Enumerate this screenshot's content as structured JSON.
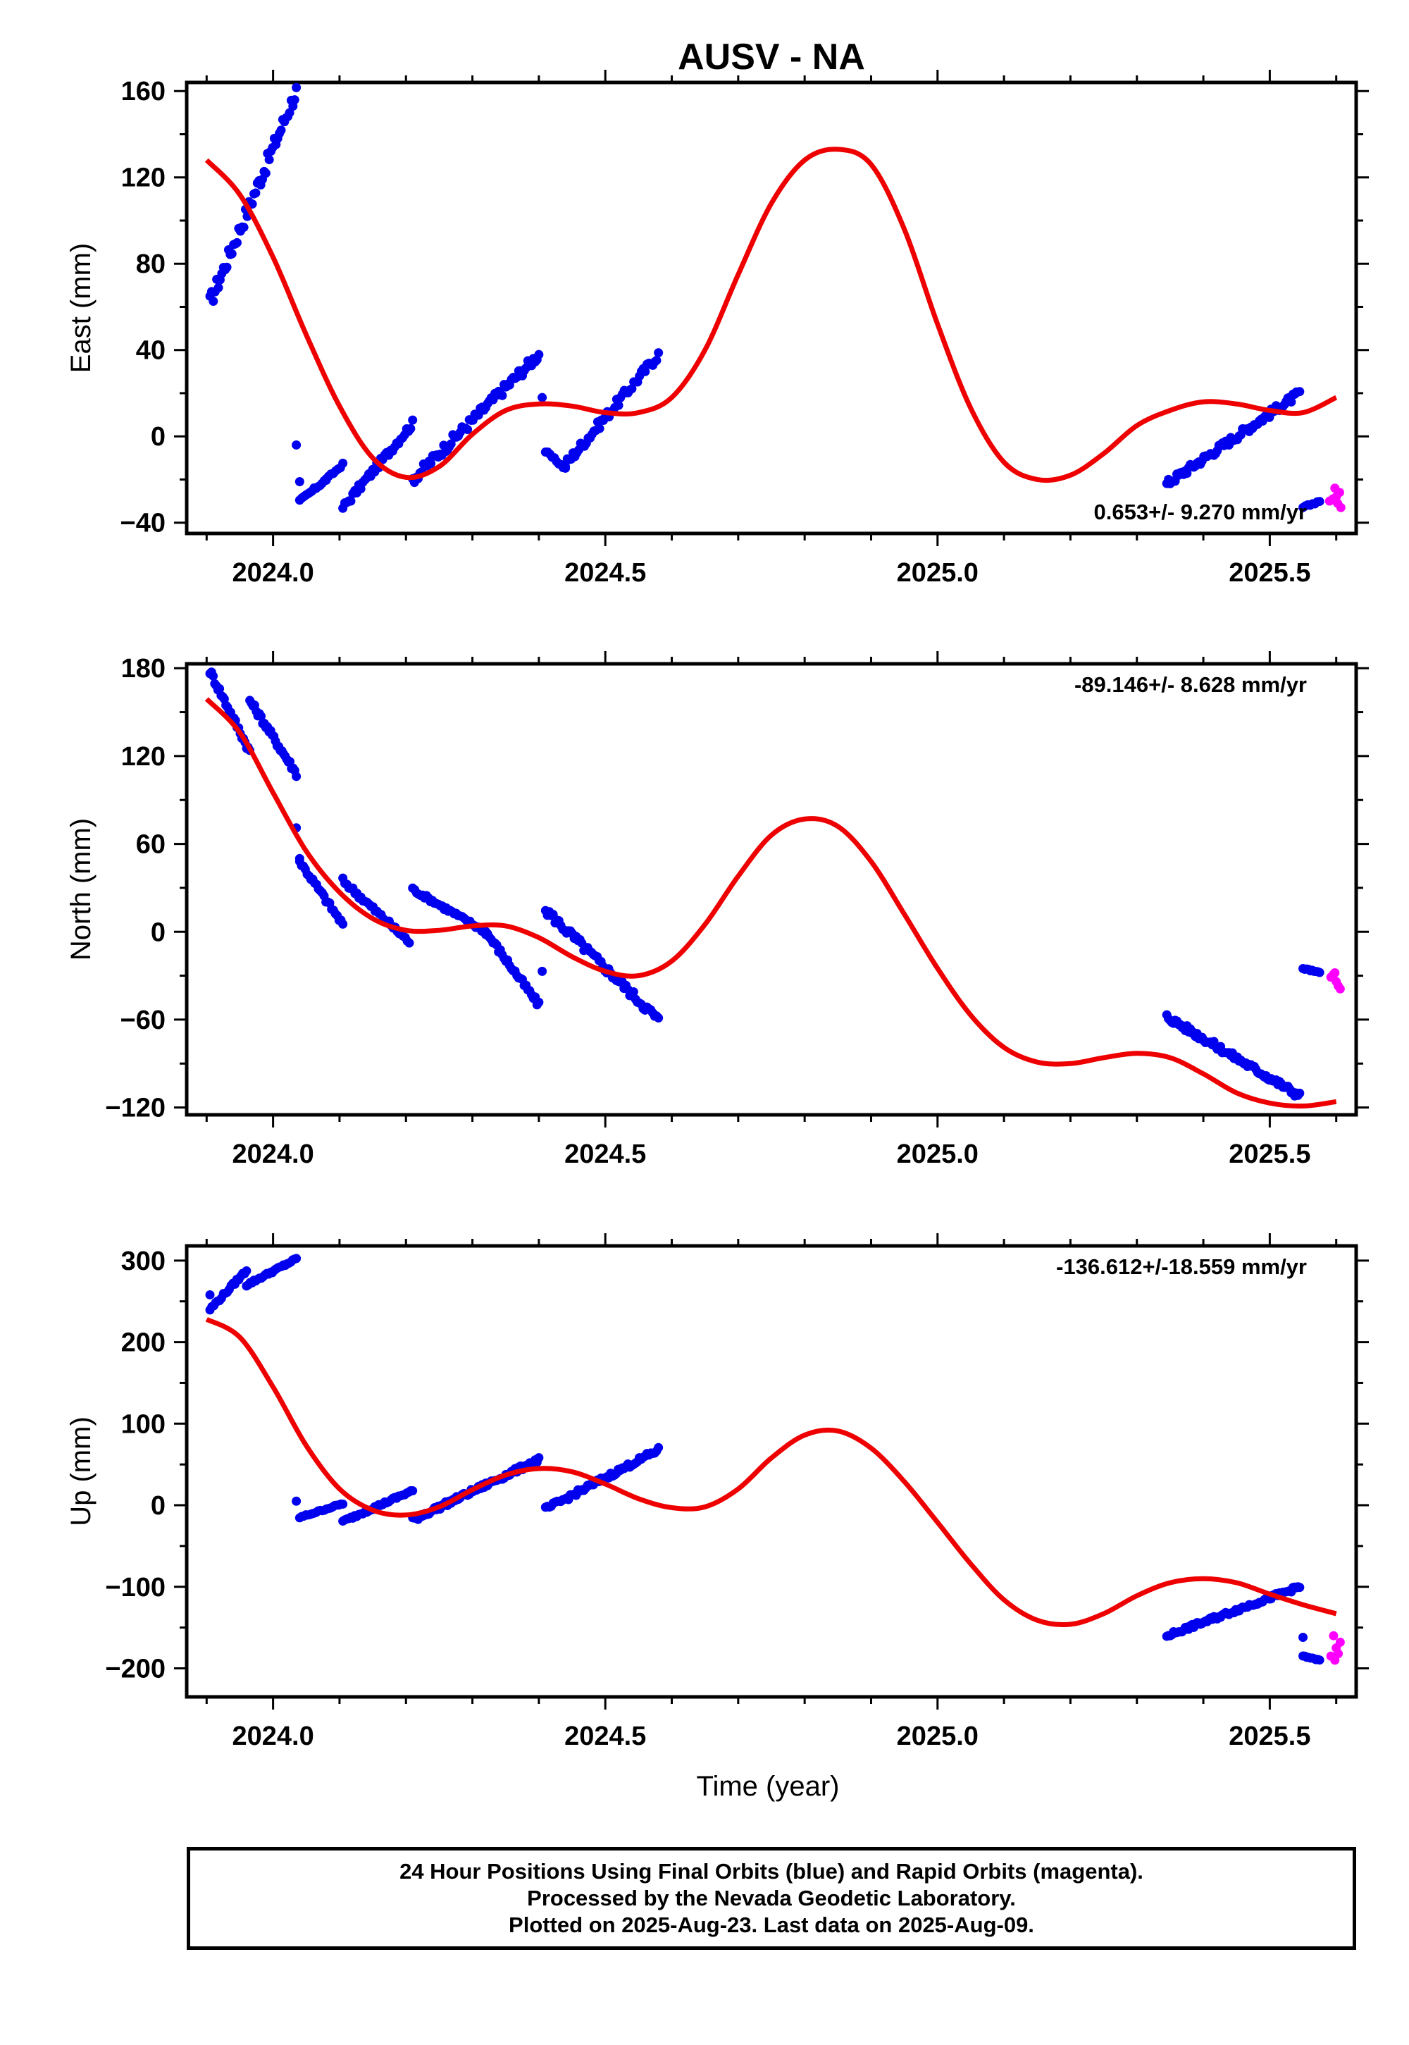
{
  "title": "AUSV - NA",
  "footer": {
    "line1": "24 Hour Positions Using Final Orbits (blue) and Rapid Orbits (magenta).",
    "line2": "Processed by the Nevada Geodetic Laboratory.",
    "line3": "Plotted on 2025-Aug-23. Last data on 2025-Aug-09."
  },
  "colors": {
    "final": "#0000ee",
    "rapid": "#ff00ff",
    "model": "#ee0000"
  },
  "chart_data": [
    {
      "type": "scatter",
      "name": "east",
      "title": "AUSV - NA",
      "ylabel": "East (mm)",
      "xlabel": "",
      "xlim": [
        2023.87,
        2025.63
      ],
      "ylim": [
        -45,
        164
      ],
      "yticks": [
        -40,
        0,
        40,
        80,
        120,
        160
      ],
      "xticks": [
        2024.0,
        2024.5,
        2025.0,
        2025.5
      ],
      "xtick_labels": [
        "2024.0",
        "2024.5",
        "2025.0",
        "2025.5"
      ],
      "rate": "0.653+/- 9.270 mm/yr",
      "rate_position": "bottom-right",
      "final_segments": [
        {
          "x": [
            2023.905,
            2024.035
          ],
          "y": [
            62,
            160
          ],
          "n": 52
        },
        {
          "x": [
            2024.04,
            2024.08
          ],
          "y": [
            -30,
            -20
          ],
          "n": 14
        },
        {
          "x": [
            2024.08,
            2024.105
          ],
          "y": [
            -20,
            -13
          ],
          "n": 8
        },
        {
          "x": [
            2024.105,
            2024.21
          ],
          "y": [
            -33,
            6
          ],
          "n": 36
        },
        {
          "x": [
            2024.21,
            2024.4
          ],
          "y": [
            -20,
            38
          ],
          "n": 70
        },
        {
          "x": [
            2024.41,
            2024.44
          ],
          "y": [
            -7,
            -15
          ],
          "n": 10
        },
        {
          "x": [
            2024.44,
            2024.58
          ],
          "y": [
            -13,
            38
          ],
          "n": 50
        },
        {
          "x": [
            2025.345,
            2025.545
          ],
          "y": [
            -22,
            20
          ],
          "n": 80
        },
        {
          "x": [
            2025.55,
            2025.575
          ],
          "y": [
            -33,
            -30
          ],
          "n": 8
        }
      ],
      "final_extra": [
        {
          "x": 2024.035,
          "y": -4
        },
        {
          "x": 2024.04,
          "y": -21
        },
        {
          "x": 2024.405,
          "y": 18
        }
      ],
      "rapid_points": [
        {
          "x": 2025.595,
          "y": -29
        },
        {
          "x": 2025.598,
          "y": -24
        },
        {
          "x": 2025.6,
          "y": -28
        },
        {
          "x": 2025.602,
          "y": -31
        },
        {
          "x": 2025.605,
          "y": -26
        },
        {
          "x": 2025.607,
          "y": -33
        },
        {
          "x": 2025.59,
          "y": -30
        }
      ],
      "model": {
        "x": [
          2023.9,
          2023.95,
          2024.0,
          2024.05,
          2024.1,
          2024.15,
          2024.2,
          2024.25,
          2024.3,
          2024.35,
          2024.4,
          2024.45,
          2024.5,
          2024.55,
          2024.6,
          2024.65,
          2024.7,
          2024.75,
          2024.8,
          2024.85,
          2024.9,
          2024.95,
          2025.0,
          2025.05,
          2025.1,
          2025.15,
          2025.2,
          2025.25,
          2025.3,
          2025.35,
          2025.4,
          2025.45,
          2025.5,
          2025.55,
          2025.6
        ],
        "y": [
          128,
          112,
          83,
          47,
          14,
          -10,
          -19,
          -14,
          1,
          12,
          15,
          14,
          11,
          11,
          18,
          40,
          75,
          108,
          128,
          133,
          126,
          96,
          52,
          13,
          -12,
          -20,
          -18,
          -8,
          5,
          12,
          16,
          15,
          12,
          11,
          18
        ]
      }
    },
    {
      "type": "scatter",
      "name": "north",
      "ylabel": "North (mm)",
      "xlabel": "",
      "xlim": [
        2023.87,
        2025.63
      ],
      "ylim": [
        -125,
        183
      ],
      "yticks": [
        -120,
        -60,
        0,
        60,
        120,
        180
      ],
      "xticks": [
        2024.0,
        2024.5,
        2025.0,
        2025.5
      ],
      "xtick_labels": [
        "2024.0",
        "2024.5",
        "2025.0",
        "2025.5"
      ],
      "rate": "-89.146+/- 8.628 mm/yr",
      "rate_position": "top-right",
      "final_segments": [
        {
          "x": [
            2023.905,
            2023.965
          ],
          "y": [
            178,
            123
          ],
          "n": 26
        },
        {
          "x": [
            2023.965,
            2024.035
          ],
          "y": [
            158,
            108
          ],
          "n": 30
        },
        {
          "x": [
            2024.04,
            2024.105
          ],
          "y": [
            48,
            5
          ],
          "n": 24
        },
        {
          "x": [
            2024.105,
            2024.205
          ],
          "y": [
            35,
            -7
          ],
          "n": 34
        },
        {
          "x": [
            2024.21,
            2024.32
          ],
          "y": [
            29,
            0
          ],
          "n": 38
        },
        {
          "x": [
            2024.32,
            2024.4
          ],
          "y": [
            0,
            -50
          ],
          "n": 30
        },
        {
          "x": [
            2024.41,
            2024.58
          ],
          "y": [
            15,
            -60
          ],
          "n": 60
        },
        {
          "x": [
            2025.345,
            2025.545
          ],
          "y": [
            -58,
            -112
          ],
          "n": 80
        },
        {
          "x": [
            2025.55,
            2025.575
          ],
          "y": [
            -25,
            -28
          ],
          "n": 10
        }
      ],
      "final_extra": [
        {
          "x": 2024.035,
          "y": 71
        },
        {
          "x": 2024.405,
          "y": -27
        },
        {
          "x": 2024.04,
          "y": 50
        }
      ],
      "rapid_points": [
        {
          "x": 2025.592,
          "y": -31
        },
        {
          "x": 2025.596,
          "y": -29
        },
        {
          "x": 2025.6,
          "y": -34
        },
        {
          "x": 2025.603,
          "y": -37
        },
        {
          "x": 2025.606,
          "y": -39
        },
        {
          "x": 2025.598,
          "y": -28
        }
      ],
      "model": {
        "x": [
          2023.9,
          2023.95,
          2024.0,
          2024.05,
          2024.1,
          2024.15,
          2024.2,
          2024.25,
          2024.3,
          2024.35,
          2024.4,
          2024.45,
          2024.5,
          2024.55,
          2024.6,
          2024.65,
          2024.7,
          2024.75,
          2024.8,
          2024.85,
          2024.9,
          2024.95,
          2025.0,
          2025.05,
          2025.1,
          2025.15,
          2025.2,
          2025.25,
          2025.3,
          2025.35,
          2025.4,
          2025.45,
          2025.5,
          2025.55,
          2025.6
        ],
        "y": [
          159,
          136,
          95,
          55,
          27,
          9,
          1,
          1,
          4,
          4,
          -4,
          -17,
          -27,
          -30,
          -20,
          5,
          38,
          66,
          77,
          72,
          48,
          12,
          -25,
          -57,
          -79,
          -89,
          -90,
          -86,
          -83,
          -86,
          -97,
          -110,
          -117,
          -119,
          -116
        ]
      }
    },
    {
      "type": "scatter",
      "name": "up",
      "ylabel": "Up (mm)",
      "xlabel": "Time (year)",
      "xlim": [
        2023.87,
        2025.63
      ],
      "ylim": [
        -235,
        318
      ],
      "yticks": [
        -200,
        -100,
        0,
        100,
        200,
        300
      ],
      "xticks": [
        2024.0,
        2024.5,
        2025.0,
        2025.5
      ],
      "xtick_labels": [
        "2024.0",
        "2024.5",
        "2025.0",
        "2025.5"
      ],
      "rate": "-136.612+/-18.559 mm/yr",
      "rate_position": "top-right",
      "final_segments": [
        {
          "x": [
            2023.905,
            2023.96
          ],
          "y": [
            240,
            288
          ],
          "n": 20
        },
        {
          "x": [
            2023.96,
            2024.035
          ],
          "y": [
            270,
            302
          ],
          "n": 28
        },
        {
          "x": [
            2024.04,
            2024.105
          ],
          "y": [
            -15,
            2
          ],
          "n": 22
        },
        {
          "x": [
            2024.105,
            2024.21
          ],
          "y": [
            -20,
            18
          ],
          "n": 36
        },
        {
          "x": [
            2024.21,
            2024.4
          ],
          "y": [
            -18,
            56
          ],
          "n": 70
        },
        {
          "x": [
            2024.41,
            2024.58
          ],
          "y": [
            -5,
            68
          ],
          "n": 60
        },
        {
          "x": [
            2025.345,
            2025.545
          ],
          "y": [
            -160,
            -100
          ],
          "n": 80
        },
        {
          "x": [
            2025.55,
            2025.575
          ],
          "y": [
            -185,
            -190
          ],
          "n": 10
        }
      ],
      "final_extra": [
        {
          "x": 2024.035,
          "y": 5
        },
        {
          "x": 2025.55,
          "y": -162
        },
        {
          "x": 2023.905,
          "y": 258
        }
      ],
      "rapid_points": [
        {
          "x": 2025.592,
          "y": -185
        },
        {
          "x": 2025.596,
          "y": -160
        },
        {
          "x": 2025.6,
          "y": -175
        },
        {
          "x": 2025.603,
          "y": -182
        },
        {
          "x": 2025.606,
          "y": -168
        },
        {
          "x": 2025.598,
          "y": -190
        }
      ],
      "model": {
        "x": [
          2023.9,
          2023.95,
          2024.0,
          2024.05,
          2024.1,
          2024.15,
          2024.2,
          2024.25,
          2024.3,
          2024.35,
          2024.4,
          2024.45,
          2024.5,
          2024.55,
          2024.6,
          2024.65,
          2024.7,
          2024.75,
          2024.8,
          2024.85,
          2024.9,
          2024.95,
          2025.0,
          2025.05,
          2025.1,
          2025.15,
          2025.2,
          2025.25,
          2025.3,
          2025.35,
          2025.4,
          2025.45,
          2025.5,
          2025.55,
          2025.6
        ],
        "y": [
          228,
          206,
          145,
          73,
          20,
          -6,
          -12,
          -2,
          19,
          37,
          45,
          41,
          26,
          8,
          -3,
          -2,
          20,
          58,
          86,
          91,
          70,
          29,
          -21,
          -72,
          -116,
          -141,
          -146,
          -133,
          -111,
          -95,
          -90,
          -95,
          -109,
          -122,
          -133
        ]
      }
    }
  ]
}
